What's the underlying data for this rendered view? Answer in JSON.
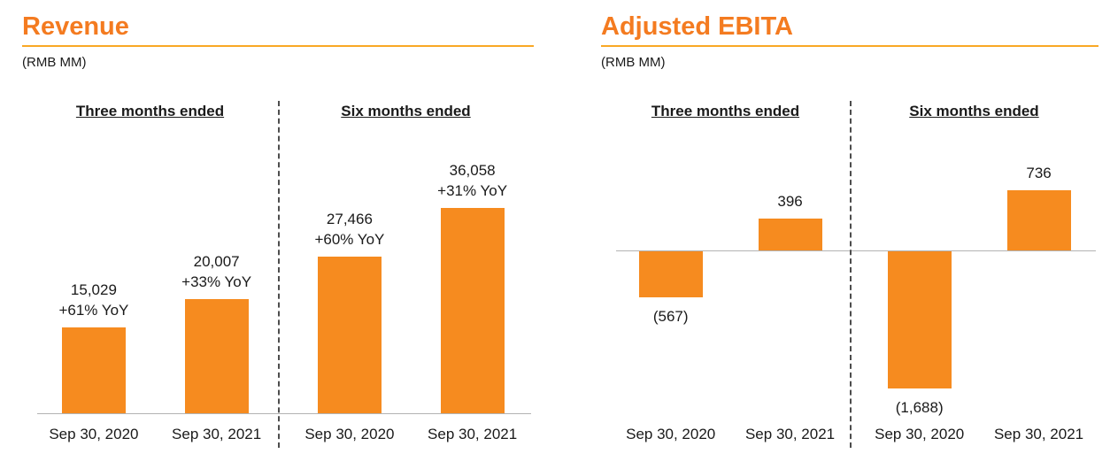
{
  "colors": {
    "bar": "#F68B1F",
    "title": "#F47B20",
    "title_rule": "#F9A825",
    "axis_line": "#B3B3B3",
    "separator": "#4D4D4D",
    "text": "#1A1A1A",
    "background": "#FFFFFF"
  },
  "chart_data": [
    {
      "type": "bar",
      "title": "Revenue",
      "units": "(RMB MM)",
      "xlabel": "",
      "ylabel": "",
      "ylim": [
        0,
        36058
      ],
      "grid": false,
      "legend": null,
      "panels": [
        {
          "header": "Three months ended",
          "bars": [
            {
              "x": "Sep 30, 2020",
              "value": 15029,
              "label": "15,029",
              "sublabel": "+61% YoY"
            },
            {
              "x": "Sep 30, 2021",
              "value": 20007,
              "label": "20,007",
              "sublabel": "+33% YoY"
            }
          ]
        },
        {
          "header": "Six months ended",
          "bars": [
            {
              "x": "Sep 30, 2020",
              "value": 27466,
              "label": "27,466",
              "sublabel": "+60% YoY"
            },
            {
              "x": "Sep 30, 2021",
              "value": 36058,
              "label": "36,058",
              "sublabel": "+31% YoY"
            }
          ]
        }
      ]
    },
    {
      "type": "bar",
      "title": "Adjusted EBITA",
      "units": "(RMB MM)",
      "xlabel": "",
      "ylabel": "",
      "ylim": [
        -1688,
        736
      ],
      "grid": false,
      "legend": null,
      "panels": [
        {
          "header": "Three months ended",
          "bars": [
            {
              "x": "Sep 30, 2020",
              "value": -567,
              "label": "(567)"
            },
            {
              "x": "Sep 30, 2021",
              "value": 396,
              "label": "396"
            }
          ]
        },
        {
          "header": "Six months ended",
          "bars": [
            {
              "x": "Sep 30, 2020",
              "value": -1688,
              "label": "(1,688)"
            },
            {
              "x": "Sep 30, 2021",
              "value": 736,
              "label": "736"
            }
          ]
        }
      ]
    }
  ]
}
